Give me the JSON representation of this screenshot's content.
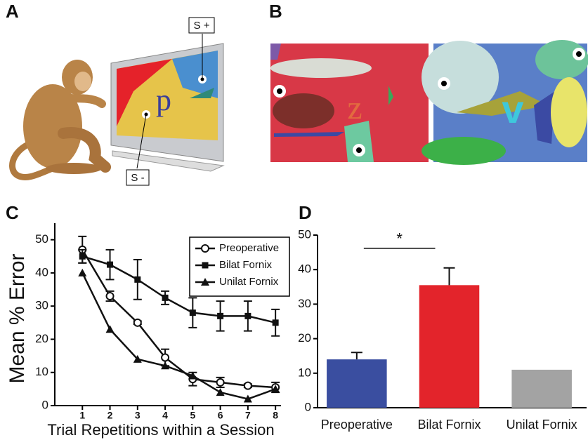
{
  "panel_labels": [
    "A",
    "B",
    "C",
    "D"
  ],
  "illustration": {
    "s_plus": "S +",
    "s_minus": "S -",
    "stimulus_letters": [
      "p",
      "z",
      "v"
    ]
  },
  "chart_data": [
    {
      "type": "line",
      "y_label": "Mean % Error",
      "x_label": "Trial Repetitions within a Session",
      "x": [
        1,
        2,
        3,
        4,
        5,
        6,
        7,
        8
      ],
      "xlim": [
        0,
        8.2
      ],
      "xticks": [
        1,
        2,
        3,
        4,
        5,
        6,
        7,
        8
      ],
      "ylim": [
        0,
        55
      ],
      "yticks": [
        0,
        10,
        20,
        30,
        40,
        50
      ],
      "legend": "upper right",
      "series": [
        {
          "name": "Preoperative",
          "color": "#111111",
          "marker": "open-circle",
          "values": [
            47,
            33,
            25,
            14.5,
            8,
            7,
            6,
            5.5
          ],
          "errors": [
            4,
            1.5,
            0.5,
            2.5,
            2,
            1.5,
            0.5,
            1.5
          ]
        },
        {
          "name": "Bilat Fornix",
          "color": "#111111",
          "marker": "square",
          "values": [
            45,
            42.5,
            38,
            32.5,
            28,
            27,
            27,
            25
          ],
          "errors": [
            2,
            4.5,
            6,
            2,
            4.5,
            4.5,
            4.5,
            4
          ]
        },
        {
          "name": "Unilat Fornix",
          "color": "#111111",
          "marker": "triangle",
          "values": [
            40,
            23,
            14,
            12,
            9,
            4,
            2,
            5
          ]
        }
      ]
    },
    {
      "type": "bar",
      "categories": [
        "Preoperative",
        "Bilat Fornix",
        "Unilat Fornix"
      ],
      "values": [
        14,
        35.5,
        11
      ],
      "errors": [
        2,
        5,
        null
      ],
      "colors": [
        "#3a4ea0",
        "#e3242b",
        "#a3a3a3"
      ],
      "ylim": [
        0,
        50
      ],
      "yticks": [
        0,
        10,
        20,
        30,
        40,
        50
      ],
      "annotation": "*"
    }
  ]
}
